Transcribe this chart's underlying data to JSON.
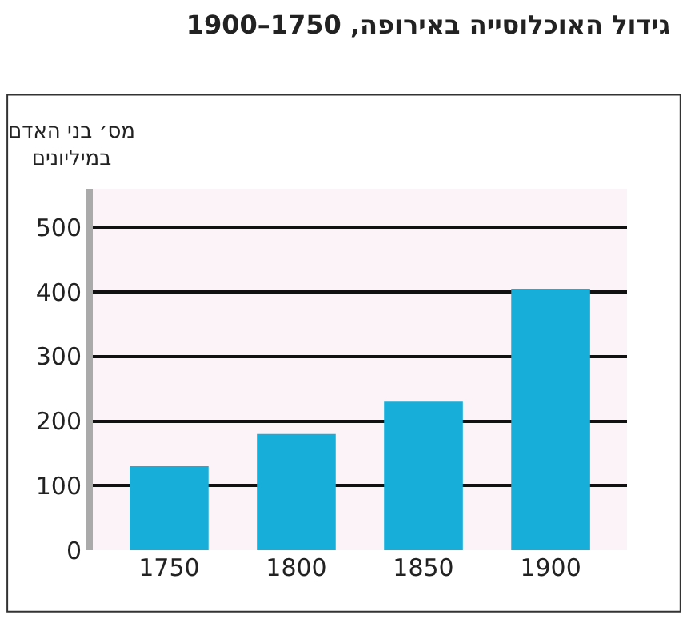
{
  "chart_data": {
    "type": "bar",
    "title": "גידול האוכלוסייה באירופה, 1750–1900",
    "ylabel": "מס׳ בני האדם\nבמיליונים",
    "categories": [
      "1750",
      "1800",
      "1850",
      "1900"
    ],
    "values": [
      130,
      180,
      230,
      405
    ],
    "color": "#17afd9",
    "ylim": [
      0,
      560
    ],
    "yticks": [
      0,
      100,
      200,
      300,
      400,
      500
    ],
    "grid": "y"
  }
}
